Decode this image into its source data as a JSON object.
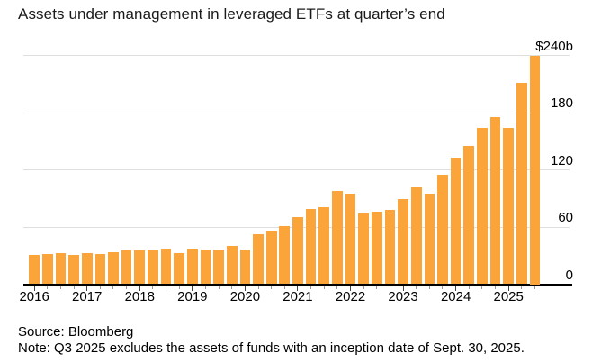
{
  "title": "Assets under management in leveraged ETFs at quarter’s end",
  "source": "Source: Bloomberg",
  "note": "Note: Q3 2025 excludes the assets of funds with an inception date of Sept. 30, 2025.",
  "colors": {
    "bar": "#faa43a",
    "gridline": "#dedede",
    "axis": "#000000",
    "tick_minor": "#999999",
    "tick_year": "#444444",
    "text": "#000000"
  },
  "chart_data": {
    "type": "bar",
    "title": "Assets under management in leveraged ETFs at quarter’s end",
    "unit": "$ billions",
    "categories": [
      "2016 Q1",
      "2016 Q2",
      "2016 Q3",
      "2016 Q4",
      "2017 Q1",
      "2017 Q2",
      "2017 Q3",
      "2017 Q4",
      "2018 Q1",
      "2018 Q2",
      "2018 Q3",
      "2018 Q4",
      "2019 Q1",
      "2019 Q2",
      "2019 Q3",
      "2019 Q4",
      "2020 Q1",
      "2020 Q2",
      "2020 Q3",
      "2020 Q4",
      "2021 Q1",
      "2021 Q2",
      "2021 Q3",
      "2021 Q4",
      "2022 Q1",
      "2022 Q2",
      "2022 Q3",
      "2022 Q4",
      "2023 Q1",
      "2023 Q2",
      "2023 Q3",
      "2023 Q4",
      "2024 Q1",
      "2024 Q2",
      "2024 Q3",
      "2024 Q4",
      "2025 Q1",
      "2025 Q2",
      "2025 Q3"
    ],
    "values": [
      31,
      32,
      33,
      31,
      33,
      32,
      34,
      35,
      35,
      36,
      37,
      33,
      37,
      36,
      36,
      40,
      36,
      52,
      55,
      61,
      70,
      79,
      81,
      98,
      95,
      74,
      76,
      78,
      89,
      102,
      95,
      115,
      133,
      145,
      164,
      175,
      164,
      211,
      240
    ],
    "x_tick_labels": [
      "2016",
      "2017",
      "2018",
      "2019",
      "2020",
      "2021",
      "2022",
      "2023",
      "2024",
      "2025"
    ],
    "y_ticks": [
      {
        "label": "$240b",
        "value": 240
      },
      {
        "label": "180",
        "value": 180
      },
      {
        "label": "120",
        "value": 120
      },
      {
        "label": "60",
        "value": 60
      },
      {
        "label": "0",
        "value": 0
      }
    ],
    "ylim": [
      0,
      240
    ],
    "grid": "horizontal",
    "y_axis_side": "right",
    "legend": "none"
  }
}
